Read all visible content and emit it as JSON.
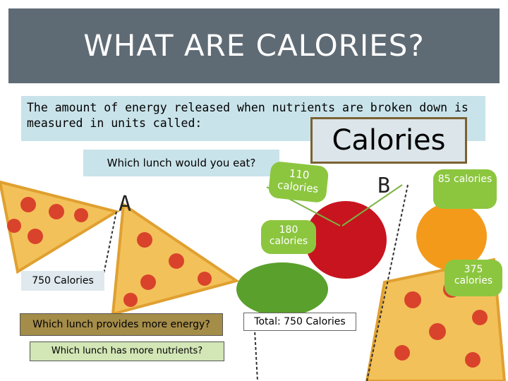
{
  "header": {
    "title": "WHAT ARE CALORIES?"
  },
  "intro": {
    "text": "The amount of energy released when nutrients are broken down is measured in units called:",
    "answer": "Calories"
  },
  "question": "Which lunch would you eat?",
  "lunches": [
    {
      "label": "A",
      "total": "750 Calories"
    },
    {
      "label": "B",
      "total": "Total: 750 Calories"
    }
  ],
  "callouts": [
    {
      "item": "110 calories"
    },
    {
      "item": "85 calories"
    },
    {
      "item": "180 calories"
    },
    {
      "item": "375 calories"
    }
  ],
  "questions": [
    "Which lunch provides more energy?",
    "Which lunch has more nutrients?"
  ]
}
